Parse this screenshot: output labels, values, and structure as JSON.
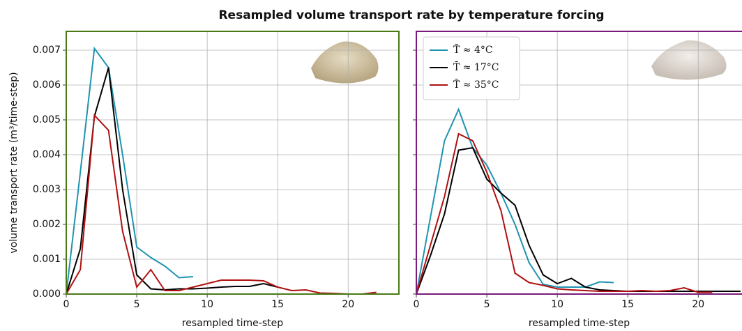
{
  "title": "Resampled volume transport rate by temperature forcing",
  "chart_data": [
    {
      "type": "line",
      "frame_color": "#4a7a14",
      "ylabel": "volume transport rate (m³/time-step)",
      "xlabel": "resampled time-step",
      "xlim": [
        0,
        23.6
      ],
      "ylim": [
        0,
        0.00754
      ],
      "xticks": [
        0,
        5,
        10,
        15,
        20
      ],
      "yticks": [
        {
          "value": 0,
          "label": "0.000"
        },
        {
          "value": 0.001,
          "label": "0.001"
        },
        {
          "value": 0.002,
          "label": "0.002"
        },
        {
          "value": 0.003,
          "label": "0.003"
        },
        {
          "value": 0.004,
          "label": "0.004"
        },
        {
          "value": 0.005,
          "label": "0.005"
        },
        {
          "value": 0.006,
          "label": "0.006"
        },
        {
          "value": 0.007,
          "label": "0.007"
        }
      ],
      "grid": true,
      "series": [
        {
          "color": "#1f93b0",
          "x": [
            0,
            1,
            2,
            3,
            4,
            5,
            6,
            7,
            8,
            9
          ],
          "values": [
            0,
            0.0035,
            0.00705,
            0.0065,
            0.004,
            0.00135,
            0.00105,
            0.0008,
            0.00047,
            0.0005
          ]
        },
        {
          "color": "#000000",
          "x": [
            0,
            1,
            2,
            3,
            4,
            5,
            6,
            7,
            8,
            9,
            10,
            11,
            12,
            13,
            14,
            15
          ],
          "values": [
            0,
            0.0013,
            0.0051,
            0.0065,
            0.003,
            0.00055,
            0.00015,
            0.00012,
            0.00015,
            0.00015,
            0.00017,
            0.0002,
            0.00022,
            0.00022,
            0.0003,
            0.0002
          ]
        },
        {
          "color": "#b01010",
          "x": [
            0,
            1,
            2,
            3,
            4,
            5,
            6,
            7,
            8,
            9,
            10,
            11,
            12,
            13,
            14,
            15,
            16,
            17,
            18,
            19,
            20,
            21,
            22
          ],
          "values": [
            0,
            0.0007,
            0.00513,
            0.0047,
            0.0018,
            0.0002,
            0.0007,
            0.0001,
            0.0001,
            0.0002,
            0.0003,
            0.0004,
            0.0004,
            0.0004,
            0.00038,
            0.0002,
            0.0001,
            0.00012,
            3e-05,
            2e-05,
            0,
            0,
            5e-05
          ]
        }
      ]
    },
    {
      "type": "line",
      "frame_color": "#7a1a7a",
      "xlabel": "resampled time-step",
      "xlim": [
        0,
        23.6
      ],
      "ylim": [
        0,
        0.00754
      ],
      "xticks": [
        0,
        5,
        10,
        15,
        20
      ],
      "yticks": [
        0,
        0.001,
        0.002,
        0.003,
        0.004,
        0.005,
        0.006,
        0.007
      ],
      "grid": true,
      "legend": "upper left",
      "series": [
        {
          "name": "T̄ ≈ 4°C",
          "color": "#1f93b0",
          "x": [
            0,
            1,
            2,
            3,
            4,
            5,
            6,
            7,
            8,
            9,
            10,
            11,
            12,
            13,
            14
          ],
          "values": [
            0,
            0.0022,
            0.0044,
            0.0053,
            0.0042,
            0.0037,
            0.0029,
            0.002,
            0.0009,
            0.00028,
            0.0002,
            0.0002,
            0.0002,
            0.00035,
            0.00033
          ]
        },
        {
          "name": "T̄ ≈ 17°C",
          "color": "#000000",
          "x": [
            0,
            1,
            2,
            3,
            4,
            5,
            6,
            7,
            8,
            9,
            10,
            11,
            12,
            13,
            14,
            15,
            16,
            17,
            18,
            19,
            20,
            21,
            22,
            23
          ],
          "values": [
            0,
            0.0011,
            0.0023,
            0.00413,
            0.0042,
            0.0033,
            0.0029,
            0.00255,
            0.0014,
            0.00055,
            0.0003,
            0.00045,
            0.0002,
            0.00012,
            0.0001,
            8e-05,
            8e-05,
            8e-05,
            8e-05,
            8e-05,
            8e-05,
            8e-05,
            8e-05,
            8e-05
          ]
        },
        {
          "name": "T̄ ≈ 35°C",
          "color": "#b01010",
          "x": [
            0,
            1,
            2,
            3,
            4,
            5,
            6,
            7,
            8,
            9,
            10,
            11,
            12,
            13,
            14,
            15,
            16,
            17,
            18,
            19,
            20,
            21
          ],
          "values": [
            0,
            0.0014,
            0.0028,
            0.0046,
            0.0044,
            0.0035,
            0.0024,
            0.0006,
            0.00033,
            0.00025,
            0.00015,
            0.00012,
            0.0001,
            8e-05,
            8e-05,
            8e-05,
            0.0001,
            8e-05,
            0.0001,
            0.00018,
            5e-05,
            5e-05
          ]
        }
      ]
    }
  ]
}
